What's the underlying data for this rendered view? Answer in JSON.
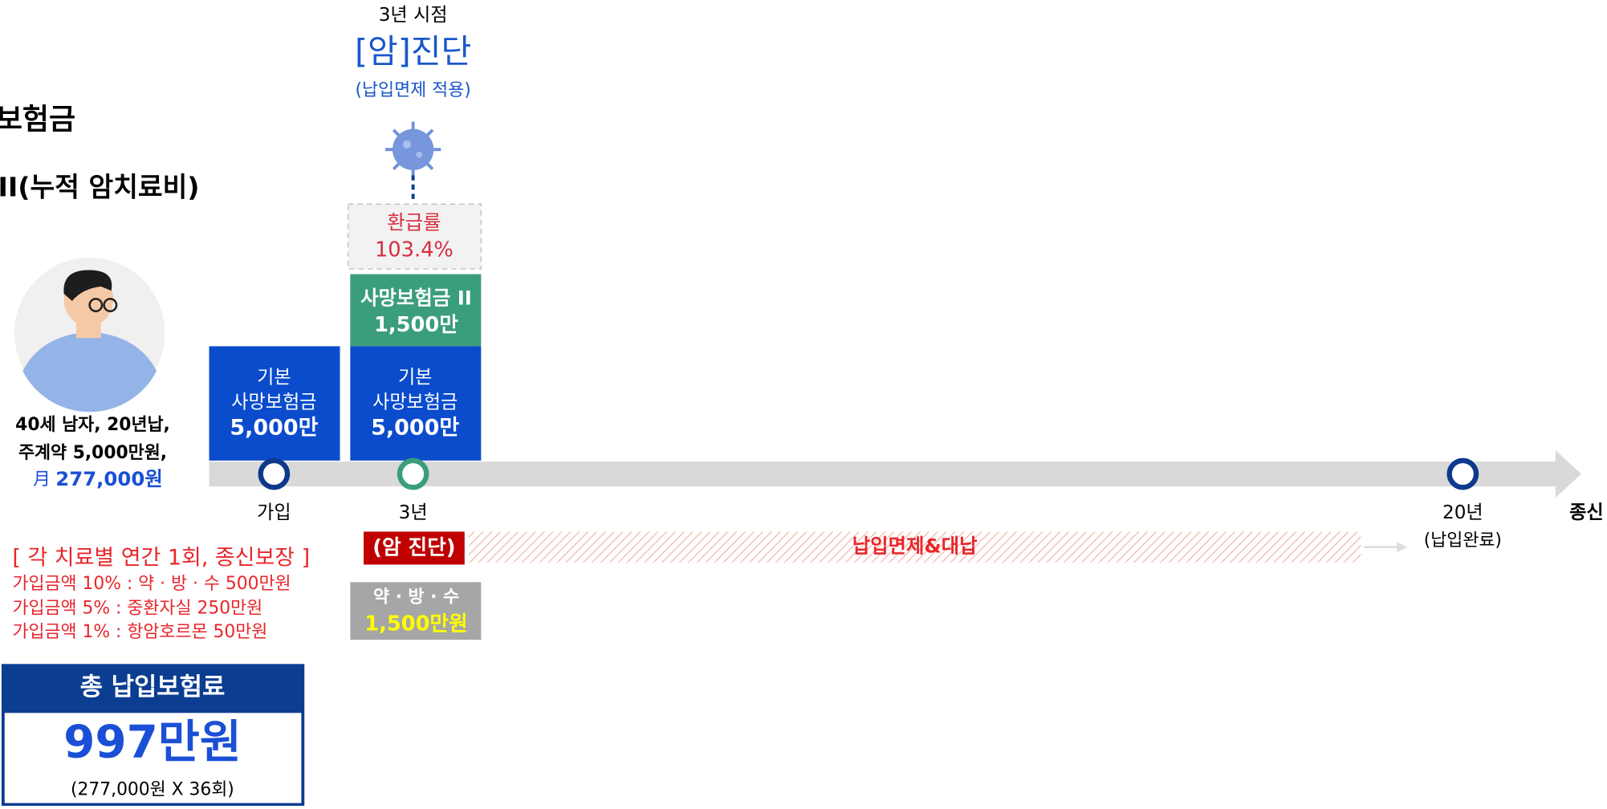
{
  "header": {
    "title": "보험금",
    "subtitle": "II(누적 암치료비)"
  },
  "event": {
    "when": "3년 시점",
    "title": "[암]진단",
    "note": "(납입면제 적용)"
  },
  "refund": {
    "label": "환급률",
    "value": "103.4%"
  },
  "extra_death": {
    "label": "사망보험금 II",
    "value": "1,500만"
  },
  "base_boxes": [
    {
      "line1": "기본",
      "line2": "사망보험금",
      "value": "5,000만"
    },
    {
      "line1": "기본",
      "line2": "사망보험금",
      "value": "5,000만"
    }
  ],
  "person": {
    "line1": "40세 남자, 20년납,",
    "line2": "주계약 5,000만원,",
    "month": "月",
    "premium": "277,000원"
  },
  "timeline": {
    "start": "가입",
    "year3": "3년",
    "year20": "20년",
    "year20_note": "(납입완료)",
    "end": "종신"
  },
  "diagnosis": {
    "label": "(암 진단)",
    "waiver": "납입면제&대납"
  },
  "treatment": {
    "label": "약 · 방 · 수",
    "value": "1,500만원"
  },
  "coverage": {
    "title": "[ 각 치료별 연간 1회, 종신보장 ]",
    "items": [
      "가입금액 10% : 약 · 방 · 수 500만원",
      "가입금액 5% : 중환자실 250만원",
      "가입금액 1% : 항암호르몬 50만원"
    ]
  },
  "total": {
    "title": "총 납입보험료",
    "value": "997만원",
    "note": "(277,000원 X 36회)"
  }
}
